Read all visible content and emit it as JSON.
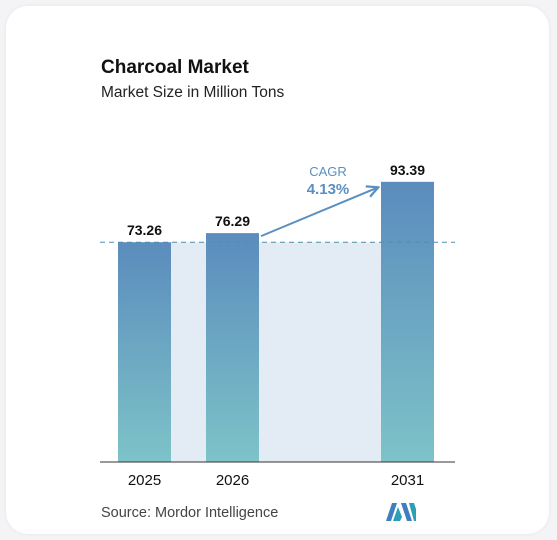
{
  "header": {
    "title": "Charcoal Market",
    "subtitle": "Market Size in Million Tons"
  },
  "cagr": {
    "label": "CAGR",
    "value": "4.13%"
  },
  "source": {
    "text": "Source:  Mordor Intelligence"
  },
  "colors": {
    "bar_top": "#5b8cbd",
    "bar_bottom": "#7dc3c8",
    "band": "#e3ebf4",
    "dashed_line": "#4f8fb0",
    "cagr": "#5a8fc0",
    "logo": "#3f7fc0"
  },
  "logo": {
    "icon": "mordor-intelligence-logo-icon"
  },
  "chart_data": {
    "type": "bar",
    "title": "Charcoal Market",
    "subtitle": "Market Size in Million Tons",
    "categories": [
      "2025",
      "2026",
      "2031"
    ],
    "values": [
      73.26,
      76.29,
      93.39
    ],
    "value_labels": [
      "73.26",
      "76.29",
      "93.39"
    ],
    "ylim": [
      0,
      100
    ],
    "annotation": {
      "label": "CAGR",
      "value": "4.13%",
      "from": "2026",
      "to": "2031"
    },
    "grid": false,
    "legend": "none"
  }
}
